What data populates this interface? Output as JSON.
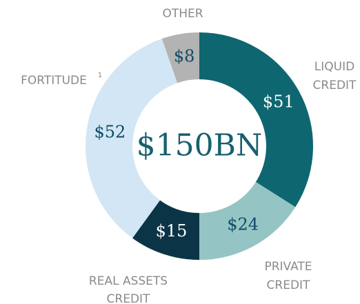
{
  "chart_data": {
    "type": "donut",
    "center_label": "$150BN",
    "categories": [
      [
        "LIQUID",
        "CREDIT"
      ],
      [
        "PRIVATE",
        "CREDIT"
      ],
      [
        "REAL ASSETS",
        "CREDIT"
      ],
      [
        "FORTITUDE"
      ],
      [
        "OTHER"
      ]
    ],
    "footnote": "1",
    "values": [
      51,
      24,
      15,
      52,
      8
    ],
    "value_labels": [
      "$51",
      "$24",
      "$15",
      "$52",
      "$8"
    ],
    "colors": [
      "#0e6670",
      "#95c4c4",
      "#0b3546",
      "#d2e6f5",
      "#b3b3b3"
    ]
  }
}
